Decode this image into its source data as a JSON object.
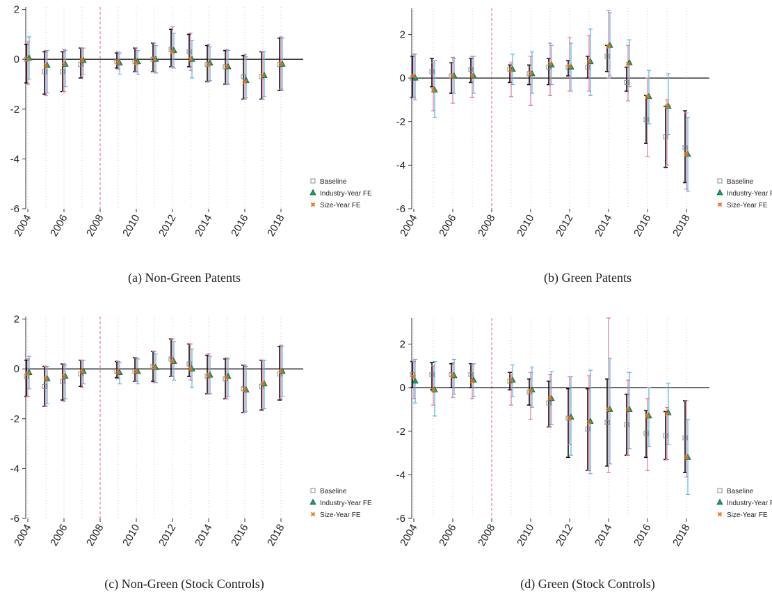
{
  "chart_data": [
    {
      "type": "errorbar",
      "caption": "(a)  Non-Green Patents",
      "x": [
        2004,
        2005,
        2006,
        2007,
        2009,
        2010,
        2011,
        2012,
        2013,
        2014,
        2015,
        2016,
        2017,
        2018
      ],
      "xlim": [
        2004,
        2018
      ],
      "xticks": [
        2004,
        2006,
        2008,
        2010,
        2012,
        2014,
        2016,
        2018
      ],
      "ylim": [
        -6,
        2.1
      ],
      "yticks": [
        -6,
        -4,
        -2,
        0,
        2
      ],
      "xline": 2008,
      "yline": 0,
      "xgrid": true,
      "legend": "lower right",
      "series": [
        {
          "name": "Baseline",
          "marker": "square",
          "color": "#888888",
          "ci_color": "#111111",
          "values": [
            0.0,
            -0.5,
            -0.5,
            -0.2,
            -0.1,
            -0.1,
            0.0,
            0.4,
            0.3,
            -0.2,
            -0.3,
            -0.7,
            -0.7,
            -0.2
          ],
          "low": [
            -0.95,
            -1.4,
            -1.3,
            -0.75,
            -0.35,
            -0.5,
            -0.5,
            -0.3,
            -0.3,
            -0.9,
            -1.0,
            -1.6,
            -1.6,
            -1.25
          ],
          "high": [
            0.6,
            0.3,
            0.3,
            0.45,
            0.25,
            0.45,
            0.65,
            1.2,
            1.0,
            0.55,
            0.35,
            0.15,
            0.3,
            0.85
          ]
        },
        {
          "name": "Industry-Year FE",
          "marker": "triangle",
          "color": "#1a9e6a",
          "ci_color": "#5ab4e5",
          "values": [
            0.05,
            -0.25,
            -0.2,
            -0.05,
            -0.15,
            -0.1,
            0.0,
            0.35,
            0.0,
            -0.15,
            -0.3,
            -0.85,
            -0.65,
            -0.2
          ],
          "low": [
            -0.8,
            -1.35,
            -1.1,
            -0.6,
            -0.6,
            -0.6,
            -0.55,
            -0.35,
            -0.75,
            -0.85,
            -1.0,
            -1.55,
            -1.5,
            -1.25
          ],
          "high": [
            0.9,
            0.35,
            0.35,
            0.45,
            0.25,
            0.35,
            0.55,
            1.05,
            0.75,
            0.5,
            0.35,
            0.1,
            0.3,
            0.85
          ]
        },
        {
          "name": "Size-Year FE",
          "marker": "x",
          "color": "#e8731a",
          "ci_color": "#d9789a",
          "values": [
            0.0,
            -0.25,
            -0.2,
            -0.05,
            -0.15,
            -0.15,
            0.0,
            0.3,
            0.0,
            -0.2,
            -0.3,
            -0.9,
            -0.65,
            -0.2
          ],
          "low": [
            -1.0,
            -1.45,
            -1.3,
            -0.7,
            -0.4,
            -0.5,
            -0.5,
            -0.3,
            -0.45,
            -0.9,
            -1.0,
            -1.6,
            -1.6,
            -1.2
          ],
          "high": [
            0.7,
            0.35,
            0.4,
            0.45,
            0.3,
            0.45,
            0.65,
            1.3,
            1.05,
            0.6,
            0.4,
            0.2,
            0.3,
            0.9
          ]
        }
      ]
    },
    {
      "type": "errorbar",
      "caption": "(b)  Green Patents",
      "x": [
        2004,
        2005,
        2006,
        2007,
        2009,
        2010,
        2011,
        2012,
        2013,
        2014,
        2015,
        2016,
        2017,
        2018
      ],
      "xlim": [
        2004,
        2018
      ],
      "xticks": [
        2004,
        2006,
        2008,
        2010,
        2012,
        2014,
        2016,
        2018
      ],
      "ylim": [
        -6,
        3.2
      ],
      "yticks": [
        -6,
        -4,
        -2,
        0,
        2
      ],
      "xline": 2008,
      "yline": 0,
      "xgrid": true,
      "legend": "lower right",
      "series": [
        {
          "name": "Baseline",
          "marker": "square",
          "color": "#888888",
          "ci_color": "#111111",
          "values": [
            0.0,
            0.3,
            0.1,
            0.4,
            0.4,
            0.2,
            0.5,
            0.5,
            0.5,
            1.0,
            -0.2,
            -1.9,
            -2.7,
            -3.2
          ],
          "low": [
            -0.9,
            -0.4,
            -0.7,
            -0.2,
            -0.2,
            -0.3,
            -0.3,
            0.1,
            0.0,
            0.3,
            -0.6,
            -3.0,
            -4.1,
            -4.8
          ],
          "high": [
            1.0,
            0.9,
            0.7,
            0.9,
            0.6,
            0.6,
            0.9,
            0.8,
            1.0,
            1.5,
            0.5,
            -0.8,
            -1.3,
            -1.5
          ]
        },
        {
          "name": "Industry-Year FE",
          "marker": "triangle",
          "color": "#1a9e6a",
          "ci_color": "#5ab4e5",
          "values": [
            0.0,
            -0.55,
            0.1,
            0.1,
            0.4,
            0.2,
            0.6,
            0.5,
            0.75,
            1.5,
            0.7,
            -0.85,
            -1.3,
            -3.5
          ],
          "low": [
            -1.0,
            -1.8,
            -0.7,
            -0.7,
            -0.3,
            -0.7,
            -0.3,
            -0.6,
            -0.8,
            0.1,
            -0.4,
            -2.1,
            -2.6,
            -5.2
          ],
          "high": [
            1.1,
            0.8,
            0.9,
            1.0,
            1.1,
            1.2,
            1.5,
            1.6,
            2.25,
            3.0,
            1.75,
            0.35,
            0.2,
            -1.8
          ]
        },
        {
          "name": "Size-Year FE",
          "marker": "x",
          "color": "#e8731a",
          "ci_color": "#d9789a",
          "values": [
            0.1,
            -0.55,
            0.1,
            0.1,
            0.35,
            0.2,
            0.65,
            0.55,
            0.75,
            1.45,
            0.65,
            -0.85,
            -1.3,
            -3.5
          ],
          "low": [
            -0.9,
            -1.5,
            -1.15,
            -0.9,
            -0.85,
            -1.25,
            -0.8,
            -0.6,
            -0.6,
            0.0,
            -1.05,
            -3.6,
            -4.0,
            -5.1
          ],
          "high": [
            1.1,
            0.7,
            0.95,
            1.0,
            0.7,
            1.0,
            1.6,
            1.85,
            1.95,
            3.1,
            1.5,
            0.0,
            -1.0,
            -1.6
          ]
        }
      ]
    },
    {
      "type": "errorbar",
      "caption": "(c)  Non-Green (Stock Controls)",
      "x": [
        2004,
        2005,
        2006,
        2007,
        2009,
        2010,
        2011,
        2012,
        2013,
        2014,
        2015,
        2016,
        2017,
        2018
      ],
      "xlim": [
        2004,
        2018
      ],
      "xticks": [
        2004,
        2006,
        2008,
        2010,
        2012,
        2014,
        2016,
        2018
      ],
      "ylim": [
        -6,
        2.1
      ],
      "yticks": [
        -6,
        -4,
        -2,
        0,
        2
      ],
      "xline": 2008,
      "yline": 0,
      "xgrid": true,
      "legend": "lower right",
      "series": [
        {
          "name": "Baseline",
          "marker": "square",
          "color": "#888888",
          "ci_color": "#111111",
          "values": [
            -0.3,
            -0.7,
            -0.5,
            -0.2,
            -0.1,
            -0.1,
            0.1,
            0.4,
            0.2,
            -0.3,
            -0.4,
            -0.8,
            -0.7,
            -0.2
          ],
          "low": [
            -1.1,
            -1.5,
            -1.25,
            -0.7,
            -0.35,
            -0.5,
            -0.5,
            -0.3,
            -0.3,
            -1.0,
            -1.2,
            -1.75,
            -1.65,
            -1.25
          ],
          "high": [
            0.35,
            0.1,
            0.2,
            0.35,
            0.3,
            0.45,
            0.7,
            1.2,
            1.0,
            0.55,
            0.4,
            0.15,
            0.35,
            0.9
          ]
        },
        {
          "name": "Industry-Year FE",
          "marker": "triangle",
          "color": "#1a9e6a",
          "ci_color": "#5ab4e5",
          "values": [
            -0.15,
            -0.4,
            -0.3,
            -0.1,
            -0.15,
            -0.1,
            0.05,
            0.3,
            0.0,
            -0.25,
            -0.3,
            -0.85,
            -0.6,
            -0.1
          ],
          "low": [
            -0.8,
            -1.4,
            -1.2,
            -0.6,
            -0.6,
            -0.6,
            -0.55,
            -0.45,
            -0.75,
            -1.0,
            -1.1,
            -1.7,
            -1.6,
            -1.1
          ],
          "high": [
            0.5,
            0.1,
            0.15,
            0.35,
            0.25,
            0.4,
            0.6,
            1.1,
            0.8,
            0.5,
            0.4,
            0.1,
            0.35,
            0.9
          ]
        },
        {
          "name": "Size-Year FE",
          "marker": "x",
          "color": "#e8731a",
          "ci_color": "#d9789a",
          "values": [
            -0.2,
            -0.4,
            -0.3,
            -0.1,
            -0.15,
            -0.1,
            0.05,
            0.3,
            0.0,
            -0.25,
            -0.35,
            -0.85,
            -0.6,
            -0.1
          ],
          "low": [
            -1.1,
            -1.5,
            -1.3,
            -0.75,
            -0.4,
            -0.5,
            -0.55,
            -0.3,
            -0.45,
            -1.0,
            -1.2,
            -1.75,
            -1.6,
            -1.2
          ],
          "high": [
            0.4,
            0.1,
            0.2,
            0.35,
            0.3,
            0.45,
            0.7,
            1.2,
            1.0,
            0.6,
            0.45,
            0.15,
            0.35,
            0.95
          ]
        }
      ]
    },
    {
      "type": "errorbar",
      "caption": "(d)  Green (Stock Controls)",
      "x": [
        2004,
        2005,
        2006,
        2007,
        2009,
        2010,
        2011,
        2012,
        2013,
        2014,
        2015,
        2016,
        2017,
        2018
      ],
      "xlim": [
        2004,
        2018
      ],
      "xticks": [
        2004,
        2006,
        2008,
        2010,
        2012,
        2014,
        2016,
        2018
      ],
      "ylim": [
        -6,
        3.2
      ],
      "yticks": [
        -6,
        -4,
        -2,
        0,
        2
      ],
      "xline": 2008,
      "yline": 0,
      "xgrid": true,
      "legend": "lower right",
      "series": [
        {
          "name": "Baseline",
          "marker": "square",
          "color": "#888888",
          "ci_color": "#111111",
          "values": [
            0.6,
            0.6,
            0.6,
            0.6,
            0.3,
            -0.2,
            -0.7,
            -1.4,
            -1.9,
            -1.6,
            -1.7,
            -2.1,
            -2.2,
            -2.3
          ],
          "low": [
            0.0,
            -0.1,
            0.0,
            0.0,
            -0.1,
            -0.8,
            -1.8,
            -3.2,
            -3.8,
            -3.6,
            -3.1,
            -3.2,
            -3.3,
            -3.9
          ],
          "high": [
            1.2,
            1.15,
            1.1,
            1.1,
            0.7,
            0.4,
            0.3,
            -0.05,
            -0.05,
            0.4,
            -0.3,
            -1.05,
            -1.1,
            -0.6
          ]
        },
        {
          "name": "Industry-Year FE",
          "marker": "triangle",
          "color": "#1a9e6a",
          "ci_color": "#5ab4e5",
          "values": [
            0.3,
            -0.1,
            0.55,
            0.35,
            0.35,
            -0.1,
            -0.5,
            -1.35,
            -1.55,
            -1.0,
            -1.0,
            -1.3,
            -1.15,
            -3.2
          ],
          "low": [
            -0.7,
            -1.3,
            -0.3,
            -0.4,
            -0.4,
            -0.9,
            -1.7,
            -3.1,
            -3.95,
            -3.5,
            -2.8,
            -2.7,
            -2.6,
            -4.9
          ],
          "high": [
            1.3,
            1.2,
            1.3,
            1.1,
            1.05,
            0.95,
            0.75,
            0.5,
            0.8,
            1.35,
            0.7,
            0.0,
            0.2,
            -1.45
          ]
        },
        {
          "name": "Size-Year FE",
          "marker": "x",
          "color": "#e8731a",
          "ci_color": "#d9789a",
          "values": [
            0.5,
            -0.1,
            0.55,
            0.3,
            0.35,
            -0.15,
            -0.5,
            -1.4,
            -1.6,
            -1.0,
            -1.0,
            -1.3,
            -1.2,
            -3.2
          ],
          "low": [
            -0.5,
            -0.8,
            -0.45,
            -0.5,
            -0.8,
            -1.45,
            -1.8,
            -2.6,
            -3.8,
            -3.9,
            -3.1,
            -3.8,
            -3.3,
            -4.1
          ],
          "high": [
            1.2,
            1.0,
            1.15,
            1.05,
            0.6,
            0.7,
            0.6,
            0.5,
            0.55,
            3.2,
            0.35,
            -0.5,
            -0.9,
            -0.6
          ]
        }
      ]
    }
  ]
}
